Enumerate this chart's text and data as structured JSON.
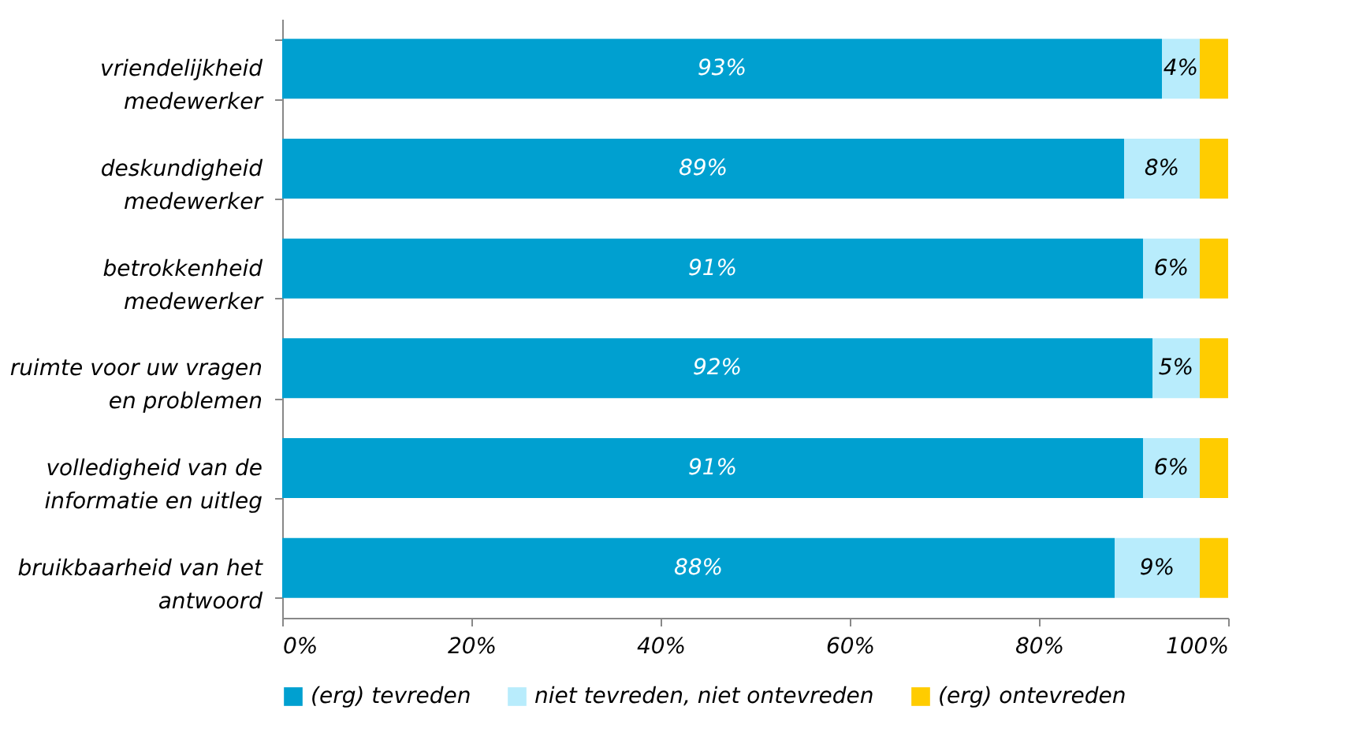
{
  "chart_data": {
    "type": "bar",
    "orientation": "horizontal",
    "stacked": true,
    "categories": [
      "vriendelijkheid\nmedewerker",
      "deskundigheid\nmedewerker",
      "betrokkenheid\nmedewerker",
      "ruimte voor uw vragen\nen problemen",
      "volledigheid van de\ninformatie en uitleg",
      "bruikbaarheid van het\nantwoord"
    ],
    "series": [
      {
        "name": "(erg) tevreden",
        "color": "#00a0d0",
        "values": [
          93,
          89,
          91,
          92,
          91,
          88
        ],
        "value_labels": [
          "93%",
          "89%",
          "91%",
          "92%",
          "91%",
          "88%"
        ]
      },
      {
        "name": "niet tevreden, niet ontevreden",
        "color": "#b8ecfc",
        "values": [
          4,
          8,
          6,
          5,
          6,
          9
        ],
        "value_labels": [
          "4%",
          "8%",
          "6%",
          "5%",
          "6%",
          "9%"
        ]
      },
      {
        "name": "(erg) ontevreden",
        "color": "#ffcc00",
        "values": [
          3,
          3,
          3,
          3,
          3,
          3
        ]
      }
    ],
    "xlim": [
      0,
      100
    ],
    "xticks": [
      {
        "value": 0,
        "label": "0%"
      },
      {
        "value": 20,
        "label": "20%"
      },
      {
        "value": 40,
        "label": "40%"
      },
      {
        "value": 60,
        "label": "60%"
      },
      {
        "value": 80,
        "label": "80%"
      },
      {
        "value": 100,
        "label": "100%"
      }
    ],
    "grid": false,
    "legend": "bottom"
  }
}
